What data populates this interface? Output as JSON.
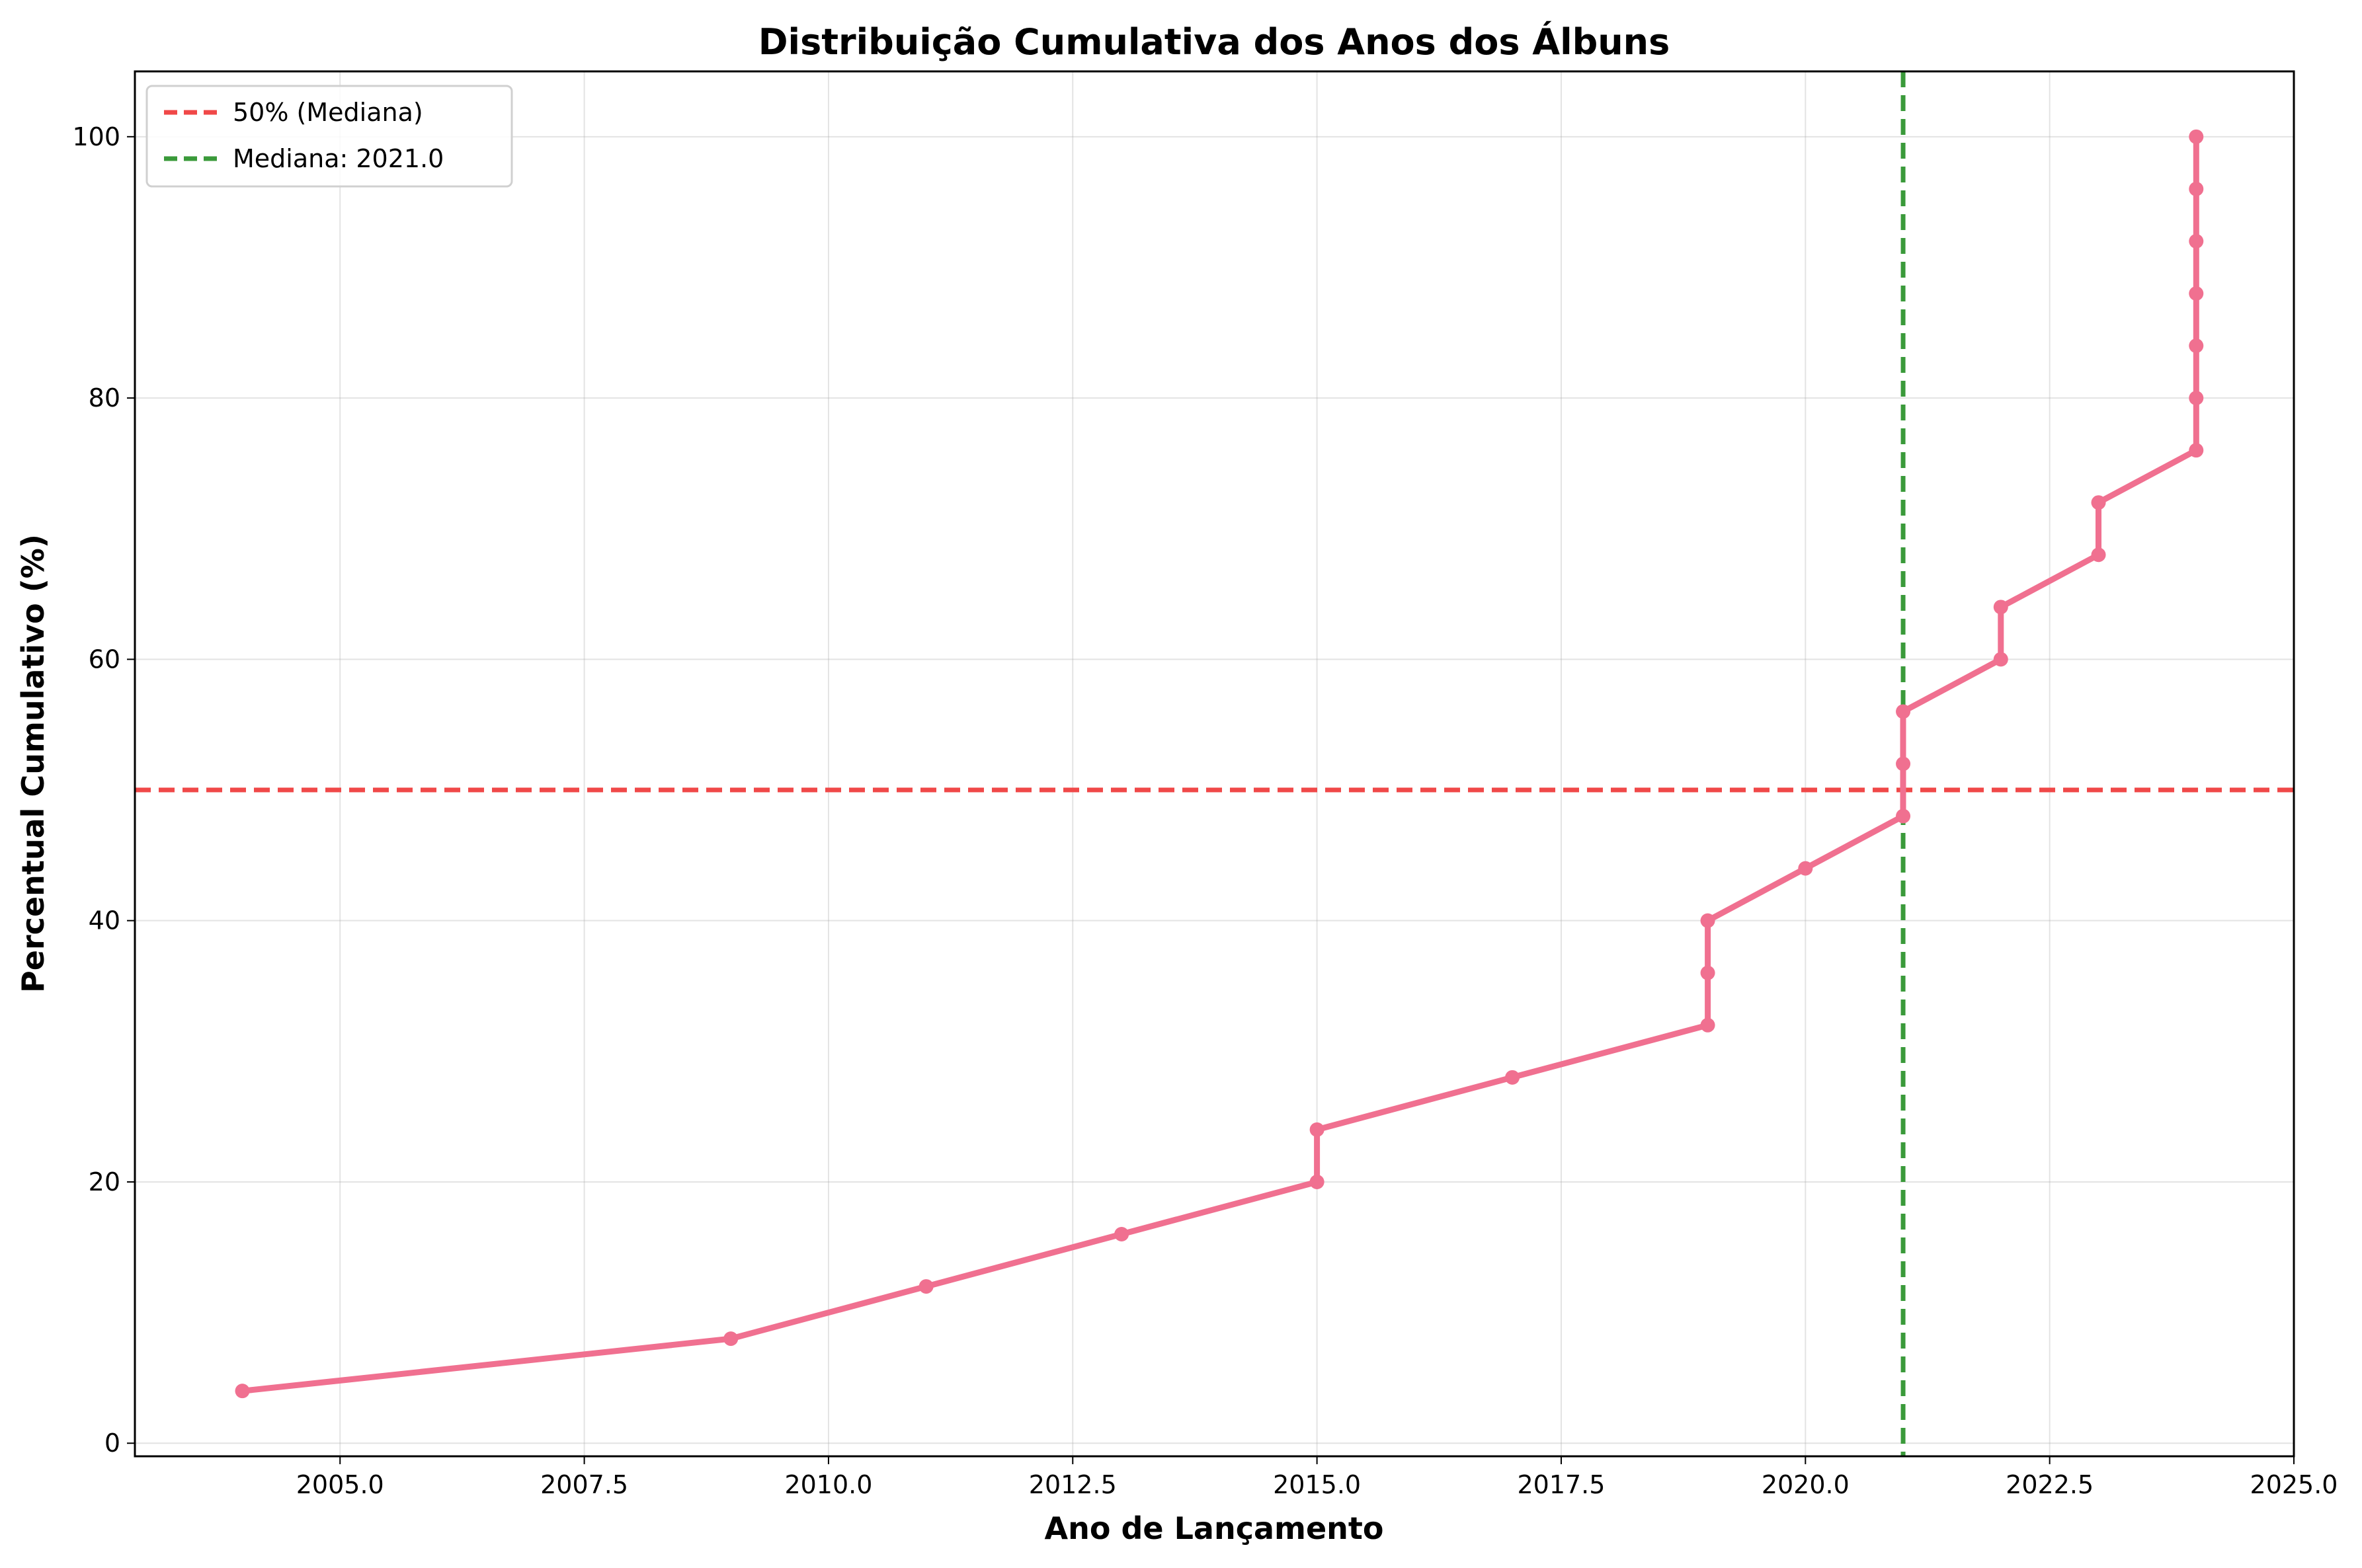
{
  "chart_data": {
    "type": "line",
    "title": "Distribuição Cumulativa dos Anos dos Álbuns",
    "xlabel": "Ano de Lançamento",
    "ylabel": "Percentual Cumulativo (%)",
    "xlim": [
      2002.9,
      2025.0
    ],
    "ylim": [
      -1,
      105
    ],
    "xticks": [
      2005.0,
      2007.5,
      2010.0,
      2012.5,
      2015.0,
      2017.5,
      2020.0,
      2022.5,
      2025.0
    ],
    "xtick_labels": [
      "2005.0",
      "2007.5",
      "2010.0",
      "2012.5",
      "2015.0",
      "2017.5",
      "2020.0",
      "2022.5",
      "2025.0"
    ],
    "yticks": [
      0,
      20,
      40,
      60,
      80,
      100
    ],
    "ytick_labels": [
      "0",
      "20",
      "40",
      "60",
      "80",
      "100"
    ],
    "grid": true,
    "legend_position": "top-left",
    "series": [
      {
        "color": "#f07090",
        "x": [
          2004,
          2009,
          2011,
          2013,
          2015,
          2015,
          2017,
          2019,
          2019,
          2019,
          2020,
          2021,
          2021,
          2021,
          2022,
          2022,
          2023,
          2023,
          2024,
          2024,
          2024,
          2024,
          2024,
          2024,
          2024
        ],
        "y": [
          4,
          8,
          12,
          16,
          20,
          24,
          28,
          32,
          36,
          40,
          44,
          48,
          52,
          56,
          60,
          64,
          68,
          72,
          76,
          80,
          84,
          88,
          92,
          96,
          100
        ]
      }
    ],
    "reference_lines": [
      {
        "orientation": "horizontal",
        "value": 50,
        "color": "#f04848",
        "label": "50% (Mediana)"
      },
      {
        "orientation": "vertical",
        "value": 2021.0,
        "color": "#3a9a3a",
        "label": "Mediana: 2021.0"
      }
    ]
  }
}
